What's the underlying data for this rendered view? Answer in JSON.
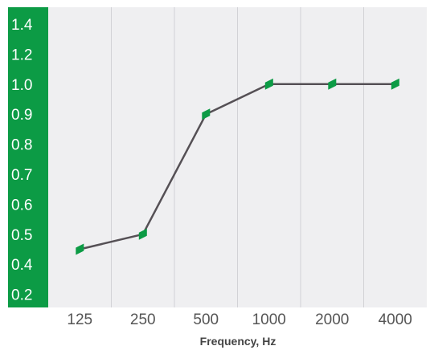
{
  "chart_data": {
    "type": "line",
    "title": "",
    "xlabel": "Frequency, Hz",
    "ylabel": "",
    "categories": [
      "125",
      "250",
      "500",
      "1000",
      "2000",
      "4000"
    ],
    "series": [
      {
        "values": [
          0.45,
          0.5,
          0.9,
          1.0,
          1.0,
          1.0
        ]
      }
    ],
    "yticks": [
      "0.2",
      "0.4",
      "0.5",
      "0.6",
      "0.7",
      "0.8",
      "0.9",
      "1.0",
      "1.2",
      "1.4"
    ],
    "grid": "vertical",
    "legend": "none",
    "colors": {
      "y_axis_band": "#0c9b45",
      "plot_background": "#efeff1",
      "gridline": "#d2d2d6",
      "line": "#555055",
      "marker": "#0c9b45"
    }
  }
}
